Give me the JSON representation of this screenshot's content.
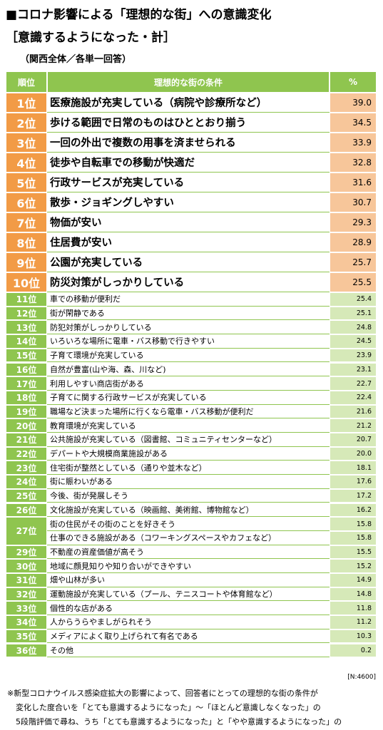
{
  "header": {
    "title": "■コロナ影響による「理想的な街」への意識変化",
    "subtitle": "［意識するようになった・計］",
    "scope": "（関西全体／各単一回答）"
  },
  "table": {
    "columns": [
      "順位",
      "理想的な街の条件",
      "%"
    ],
    "rows": [
      [
        "1位",
        "医療施設が充実している（病院や診療所など）",
        "39.0"
      ],
      [
        "2位",
        "歩ける範囲で日常のものはひととおり揃う",
        "34.5"
      ],
      [
        "3位",
        "一回の外出で複数の用事を済ませられる",
        "33.9"
      ],
      [
        "4位",
        "徒歩や自転車での移動が快適だ",
        "32.8"
      ],
      [
        "5位",
        "行政サービスが充実している",
        "31.6"
      ],
      [
        "6位",
        "散歩・ジョギングしやすい",
        "30.7"
      ],
      [
        "7位",
        "物価が安い",
        "29.3"
      ],
      [
        "8位",
        "住居費が安い",
        "28.9"
      ],
      [
        "9位",
        "公園が充実している",
        "25.7"
      ],
      [
        "10位",
        "防災対策がしっかりしている",
        "25.5"
      ],
      [
        "11位",
        "車での移動が便利だ",
        "25.4"
      ],
      [
        "12位",
        "街が閑静である",
        "25.1"
      ],
      [
        "13位",
        "防犯対策がしっかりしている",
        "24.8"
      ],
      [
        "14位",
        "いろいろな場所に電車・バス移動で行きやすい",
        "24.5"
      ],
      [
        "15位",
        "子育て環境が充実している",
        "23.9"
      ],
      [
        "16位",
        "自然が豊富(山や海、森、川など)",
        "23.1"
      ],
      [
        "17位",
        "利用しやすい商店街がある",
        "22.7"
      ],
      [
        "18位",
        "子育てに関する行政サービスが充実している",
        "22.4"
      ],
      [
        "19位",
        "職場など決まった場所に行くなら電車・バス移動が便利だ",
        "21.6"
      ],
      [
        "20位",
        "教育環境が充実している",
        "21.2"
      ],
      [
        "21位",
        "公共施設が充実している（図書館、コミュニティセンターなど）",
        "20.7"
      ],
      [
        "22位",
        "デパートや大規模商業施設がある",
        "20.0"
      ],
      [
        "23位",
        "住宅街が整然としている（通りや並木など）",
        "18.1"
      ],
      [
        "24位",
        "街に賑わいがある",
        "17.6"
      ],
      [
        "25位",
        "今後、街が発展しそう",
        "17.2"
      ],
      [
        "26位",
        "文化施設が充実している（映画館、美術館、博物館など）",
        "16.2"
      ],
      [
        "27位",
        "街の住民がその街のことを好きそう",
        "15.8"
      ],
      [
        null,
        "仕事のできる施設がある（コワーキングスペースやカフェなど）",
        "15.8"
      ],
      [
        "29位",
        "不動産の資産価値が高そう",
        "15.5"
      ],
      [
        "30位",
        "地域に顔見知りや知り合いができやすい",
        "15.2"
      ],
      [
        "31位",
        "畑や山林が多い",
        "14.9"
      ],
      [
        "32位",
        "運動施設が充実している（プール、テニスコートや体育館など）",
        "14.8"
      ],
      [
        "33位",
        "個性的な店がある",
        "11.8"
      ],
      [
        "34位",
        "人からうらやましがられそう",
        "11.2"
      ],
      [
        "35位",
        "メディアによく取り上げられて有名である",
        "10.3"
      ],
      [
        "36位",
        "その他",
        "0.2"
      ]
    ],
    "sample": "[N:4600]"
  },
  "footnote": [
    "※新型コロナウイルス感染症拡大の影響によって、回答者にとっての理想的な街の条件が",
    "変化した度合いを「とても意識するようになった」～「ほとんど意識しなくなった」の",
    "5段階評価で尋ね、うち「とても意識するようになった」と「やや意識するようになった」の"
  ]
}
